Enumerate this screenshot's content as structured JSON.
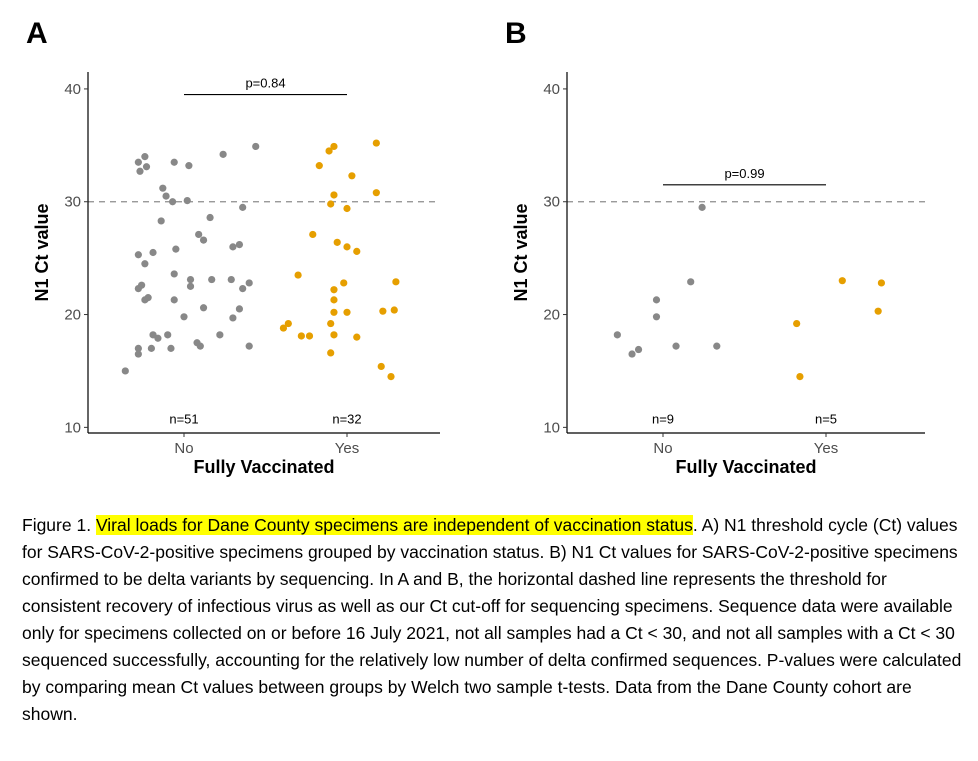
{
  "chart_data": [
    {
      "panel": "A",
      "type": "scatter",
      "xlabel": "Fully Vaccinated",
      "ylabel": "N1 Ct value",
      "categories": [
        "No",
        "Yes"
      ],
      "ylim": [
        9.5,
        41.5
      ],
      "yticks": [
        10,
        20,
        30,
        40
      ],
      "threshold": 30,
      "grid": false,
      "p_label": "p=0.84",
      "p_bracket_y": 39.5,
      "counts": [
        "n=51",
        "n=32"
      ],
      "series": [
        {
          "color": "#888888",
          "points": [
            [
              -0.36,
              15.0
            ],
            [
              -0.28,
              16.5
            ],
            [
              -0.28,
              17.0
            ],
            [
              -0.2,
              17.0
            ],
            [
              -0.08,
              17.0
            ],
            [
              0.1,
              17.2
            ],
            [
              0.08,
              17.5
            ],
            [
              0.4,
              17.2
            ],
            [
              -0.19,
              18.2
            ],
            [
              -0.1,
              18.2
            ],
            [
              0.22,
              18.2
            ],
            [
              0.3,
              19.7
            ],
            [
              0.0,
              19.8
            ],
            [
              0.12,
              20.6
            ],
            [
              0.34,
              20.5
            ],
            [
              -0.24,
              21.3
            ],
            [
              -0.06,
              21.3
            ],
            [
              -0.22,
              21.5
            ],
            [
              0.36,
              22.3
            ],
            [
              -0.28,
              22.3
            ],
            [
              0.04,
              22.5
            ],
            [
              -0.26,
              22.6
            ],
            [
              0.17,
              23.1
            ],
            [
              0.29,
              23.1
            ],
            [
              -0.06,
              23.6
            ],
            [
              0.4,
              22.8
            ],
            [
              -0.24,
              24.5
            ],
            [
              -0.19,
              25.5
            ],
            [
              -0.28,
              25.3
            ],
            [
              -0.05,
              25.8
            ],
            [
              0.12,
              26.6
            ],
            [
              0.3,
              26.0
            ],
            [
              0.34,
              26.2
            ],
            [
              0.09,
              27.1
            ],
            [
              -0.14,
              28.3
            ],
            [
              0.16,
              28.6
            ],
            [
              0.36,
              29.5
            ],
            [
              -0.07,
              30.0
            ],
            [
              0.02,
              30.1
            ],
            [
              -0.11,
              30.5
            ],
            [
              -0.13,
              31.2
            ],
            [
              -0.27,
              32.7
            ],
            [
              -0.23,
              33.1
            ],
            [
              -0.28,
              33.5
            ],
            [
              -0.06,
              33.5
            ],
            [
              0.03,
              33.2
            ],
            [
              -0.24,
              34.0
            ],
            [
              0.24,
              34.2
            ],
            [
              0.44,
              34.9
            ],
            [
              0.04,
              23.1
            ],
            [
              -0.16,
              17.9
            ]
          ]
        },
        {
          "color": "#E69F00",
          "points": [
            [
              0.61,
              18.8
            ],
            [
              0.64,
              19.2
            ],
            [
              0.72,
              18.1
            ],
            [
              0.77,
              18.1
            ],
            [
              0.7,
              23.5
            ],
            [
              0.79,
              27.1
            ],
            [
              0.83,
              33.2
            ],
            [
              0.89,
              34.5
            ],
            [
              0.92,
              34.9
            ],
            [
              0.9,
              29.8
            ],
            [
              0.92,
              30.6
            ],
            [
              1.0,
              29.4
            ],
            [
              0.94,
              26.4
            ],
            [
              1.0,
              26.0
            ],
            [
              1.06,
              25.6
            ],
            [
              0.98,
              22.8
            ],
            [
              0.92,
              22.2
            ],
            [
              0.92,
              21.3
            ],
            [
              0.92,
              20.2
            ],
            [
              1.0,
              20.2
            ],
            [
              0.9,
              19.2
            ],
            [
              0.92,
              18.2
            ],
            [
              1.06,
              18.0
            ],
            [
              0.9,
              16.6
            ],
            [
              1.03,
              32.3
            ],
            [
              1.18,
              35.2
            ],
            [
              1.18,
              30.8
            ],
            [
              1.22,
              20.3
            ],
            [
              1.29,
              20.4
            ],
            [
              1.3,
              22.9
            ],
            [
              1.21,
              15.4
            ],
            [
              1.27,
              14.5
            ]
          ]
        }
      ]
    },
    {
      "panel": "B",
      "type": "scatter",
      "xlabel": "Fully Vaccinated",
      "ylabel": "N1 Ct value",
      "categories": [
        "No",
        "Yes"
      ],
      "ylim": [
        9.5,
        41.5
      ],
      "yticks": [
        10,
        20,
        30,
        40
      ],
      "threshold": 30,
      "grid": false,
      "p_label": "p=0.99",
      "p_bracket_y": 31.5,
      "counts": [
        "n=9",
        "n=5"
      ],
      "series": [
        {
          "color": "#888888",
          "points": [
            [
              -0.28,
              18.2
            ],
            [
              -0.19,
              16.5
            ],
            [
              -0.15,
              16.9
            ],
            [
              -0.04,
              21.3
            ],
            [
              -0.04,
              19.8
            ],
            [
              0.08,
              17.2
            ],
            [
              0.17,
              22.9
            ],
            [
              0.24,
              29.5
            ],
            [
              0.33,
              17.2
            ]
          ]
        },
        {
          "color": "#E69F00",
          "points": [
            [
              0.82,
              19.2
            ],
            [
              0.84,
              14.5
            ],
            [
              1.1,
              23.0
            ],
            [
              1.32,
              20.3
            ],
            [
              1.34,
              22.8
            ]
          ]
        }
      ]
    }
  ],
  "caption": {
    "prefix": "Figure 1. ",
    "highlight": "Viral loads for Dane County specimens are independent of vaccination status",
    "body": ". A) N1 threshold cycle (Ct) values for SARS-CoV-2-positive specimens grouped by vaccination status. B) N1 Ct values for SARS-CoV-2-positive specimens confirmed to be delta variants by sequencing. In A and B, the horizontal dashed line represents the threshold for consistent recovery of infectious virus as well as our Ct cut-off for sequencing specimens. Sequence data were available only for specimens collected on or before 16 July 2021, not all samples had a Ct < 30, and not all samples with a Ct < 30 sequenced successfully, accounting for the relatively low number of delta confirmed sequences. P-values were calculated by comparing mean Ct values between groups by Welch two sample t-tests. Data from the Dane County cohort are shown."
  }
}
